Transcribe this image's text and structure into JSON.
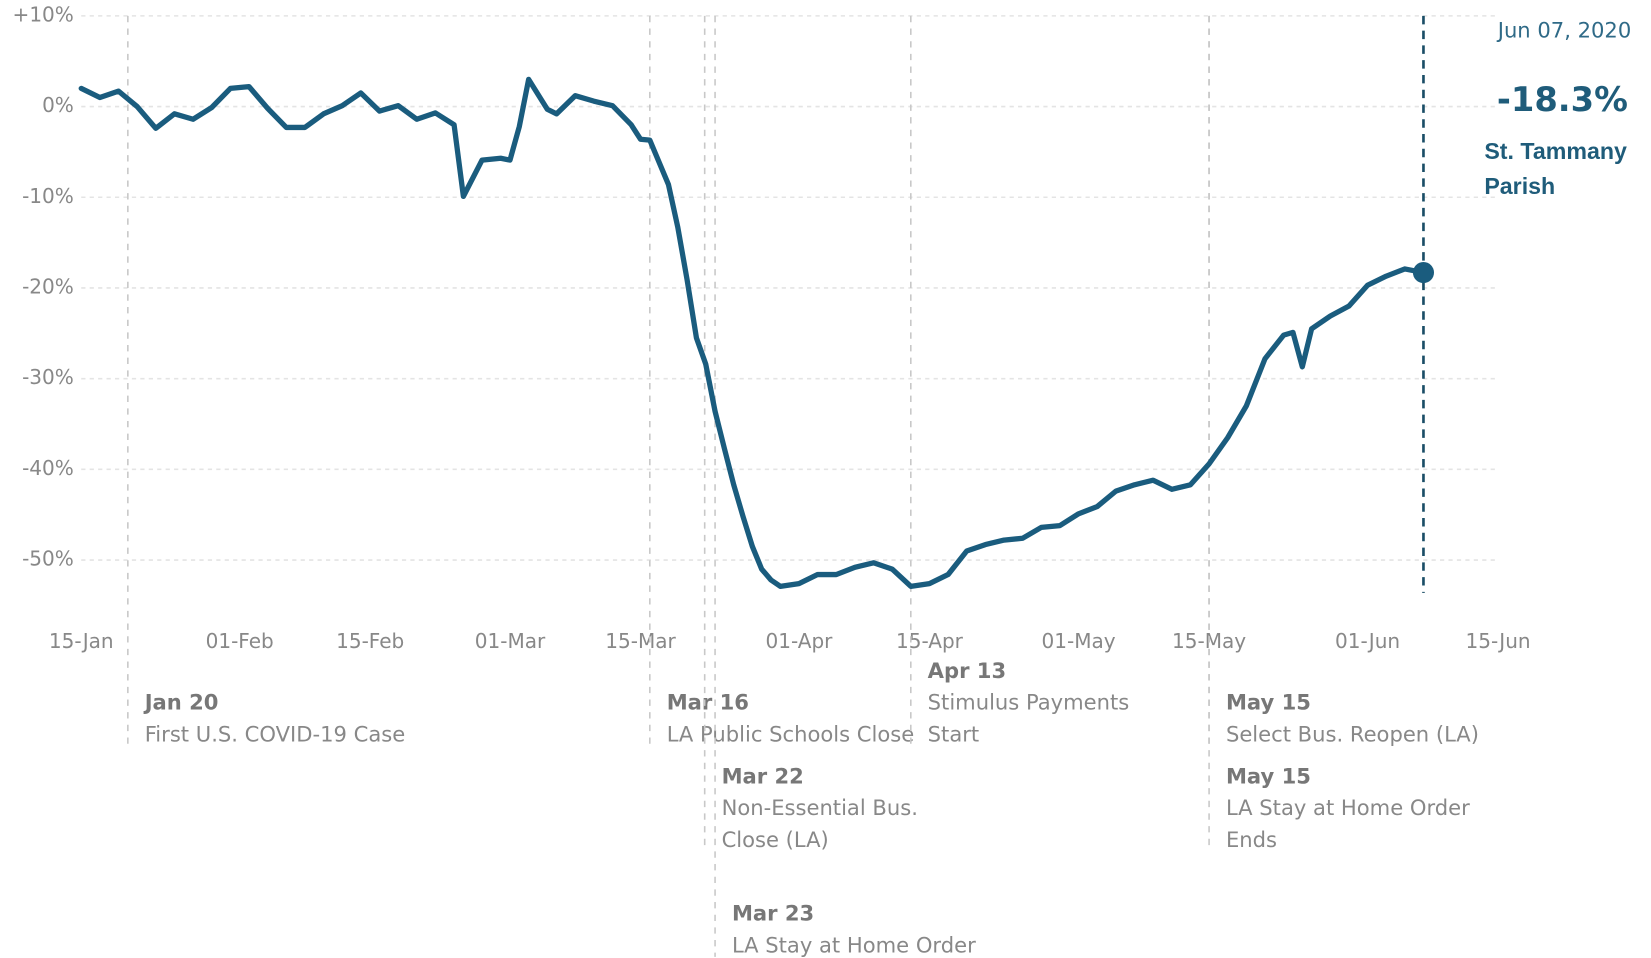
{
  "chart_data": {
    "type": "line",
    "color": "#1a5c7e",
    "x": [
      "2020-01-15",
      "2020-01-17",
      "2020-01-19",
      "2020-01-21",
      "2020-01-23",
      "2020-01-25",
      "2020-01-27",
      "2020-01-29",
      "2020-01-31",
      "2020-02-02",
      "2020-02-04",
      "2020-02-06",
      "2020-02-08",
      "2020-02-10",
      "2020-02-12",
      "2020-02-14",
      "2020-02-16",
      "2020-02-18",
      "2020-02-20",
      "2020-02-22",
      "2020-02-24",
      "2020-02-25",
      "2020-02-27",
      "2020-02-29",
      "2020-03-01",
      "2020-03-02",
      "2020-03-03",
      "2020-03-05",
      "2020-03-06",
      "2020-03-08",
      "2020-03-10",
      "2020-03-12",
      "2020-03-14",
      "2020-03-15",
      "2020-03-16",
      "2020-03-18",
      "2020-03-19",
      "2020-03-20",
      "2020-03-21",
      "2020-03-22",
      "2020-03-23",
      "2020-03-24",
      "2020-03-25",
      "2020-03-26",
      "2020-03-27",
      "2020-03-28",
      "2020-03-29",
      "2020-03-30",
      "2020-04-01",
      "2020-04-03",
      "2020-04-05",
      "2020-04-07",
      "2020-04-09",
      "2020-04-11",
      "2020-04-13",
      "2020-04-15",
      "2020-04-17",
      "2020-04-19",
      "2020-04-21",
      "2020-04-23",
      "2020-04-25",
      "2020-04-27",
      "2020-04-29",
      "2020-05-01",
      "2020-05-03",
      "2020-05-05",
      "2020-05-07",
      "2020-05-09",
      "2020-05-11",
      "2020-05-13",
      "2020-05-15",
      "2020-05-17",
      "2020-05-19",
      "2020-05-21",
      "2020-05-23",
      "2020-05-24",
      "2020-05-25",
      "2020-05-26",
      "2020-05-28",
      "2020-05-30",
      "2020-06-01",
      "2020-06-03",
      "2020-06-05",
      "2020-06-07"
    ],
    "values": [
      2.0,
      1.0,
      1.7,
      0,
      -2.4,
      -0.8,
      -1.4,
      -0.1,
      2.0,
      2.2,
      -0.2,
      -2.3,
      -2.3,
      -0.8,
      0.1,
      1.5,
      -0.5,
      0.1,
      -1.4,
      -0.7,
      -2.0,
      -9.9,
      -5.9,
      -5.7,
      -5.9,
      -2.2,
      3.0,
      -0.3,
      -0.8,
      1.2,
      0.6,
      0.1,
      -2.0,
      -3.6,
      -3.7,
      -8.6,
      -13.3,
      -19.1,
      -25.5,
      -28.4,
      -33.6,
      -37.7,
      -41.7,
      -45.2,
      -48.5,
      -51.0,
      -52.2,
      -52.9,
      -52.6,
      -51.6,
      -51.6,
      -50.8,
      -50.3,
      -51.0,
      -52.9,
      -52.6,
      -51.6,
      -49.0,
      -48.3,
      -47.8,
      -47.6,
      -46.4,
      -46.2,
      -44.9,
      -44.1,
      -42.4,
      -41.7,
      -41.2,
      -42.2,
      -41.7,
      -39.4,
      -36.5,
      -33.0,
      -27.8,
      -25.2,
      -24.9,
      -28.7,
      -24.5,
      -23.1,
      -22.0,
      -19.7,
      -18.7,
      -17.9,
      -18.3
    ],
    "xlim": [
      "2020-01-15",
      "2020-06-15"
    ],
    "xticks": [
      {
        "value": "2020-01-15",
        "label": "15-Jan"
      },
      {
        "value": "2020-02-01",
        "label": "01-Feb"
      },
      {
        "value": "2020-02-15",
        "label": "15-Feb"
      },
      {
        "value": "2020-03-01",
        "label": "01-Mar"
      },
      {
        "value": "2020-03-15",
        "label": "15-Mar"
      },
      {
        "value": "2020-04-01",
        "label": "01-Apr"
      },
      {
        "value": "2020-04-15",
        "label": "15-Apr"
      },
      {
        "value": "2020-05-01",
        "label": "01-May"
      },
      {
        "value": "2020-05-15",
        "label": "15-May"
      },
      {
        "value": "2020-06-01",
        "label": "01-Jun"
      },
      {
        "value": "2020-06-15",
        "label": "15-Jun"
      }
    ],
    "ylim": [
      -57,
      10
    ],
    "yticks": [
      {
        "value": 10,
        "label": "+10%"
      },
      {
        "value": 0,
        "label": "0%"
      },
      {
        "value": -10,
        "label": "-10%"
      },
      {
        "value": -20,
        "label": "-20%"
      },
      {
        "value": -30,
        "label": "-30%"
      },
      {
        "value": -40,
        "label": "-40%"
      },
      {
        "value": -50,
        "label": "-50%"
      }
    ],
    "grid": true,
    "highlight": {
      "x": "2020-06-07",
      "date_label": "Jun 07, 2020",
      "value_label": "-18.3%",
      "location": [
        "St. Tammany",
        "Parish"
      ]
    },
    "events": [
      {
        "x": "2020-01-20",
        "date": "Jan 20",
        "text": [
          "First U.S. COVID-19 Case"
        ]
      },
      {
        "x": "2020-03-16",
        "date": "Mar 16",
        "text": [
          "LA Public Schools Close"
        ]
      },
      {
        "x": "2020-03-22",
        "date": "Mar 22",
        "text": [
          "Non-Essential Bus.",
          "Close (LA)"
        ]
      },
      {
        "x": "2020-03-23",
        "date": "Mar 23",
        "text": [
          "LA Stay at Home Order"
        ]
      },
      {
        "x": "2020-04-13",
        "date": "Apr 13",
        "text": [
          "Stimulus Payments",
          "Start"
        ]
      },
      {
        "x": "2020-05-15",
        "date": "May 15",
        "text": [
          "Select Bus. Reopen (LA)"
        ]
      },
      {
        "x": "2020-05-15",
        "date": "May 15",
        "text": [
          "LA Stay at Home Order",
          "Ends"
        ]
      }
    ]
  }
}
